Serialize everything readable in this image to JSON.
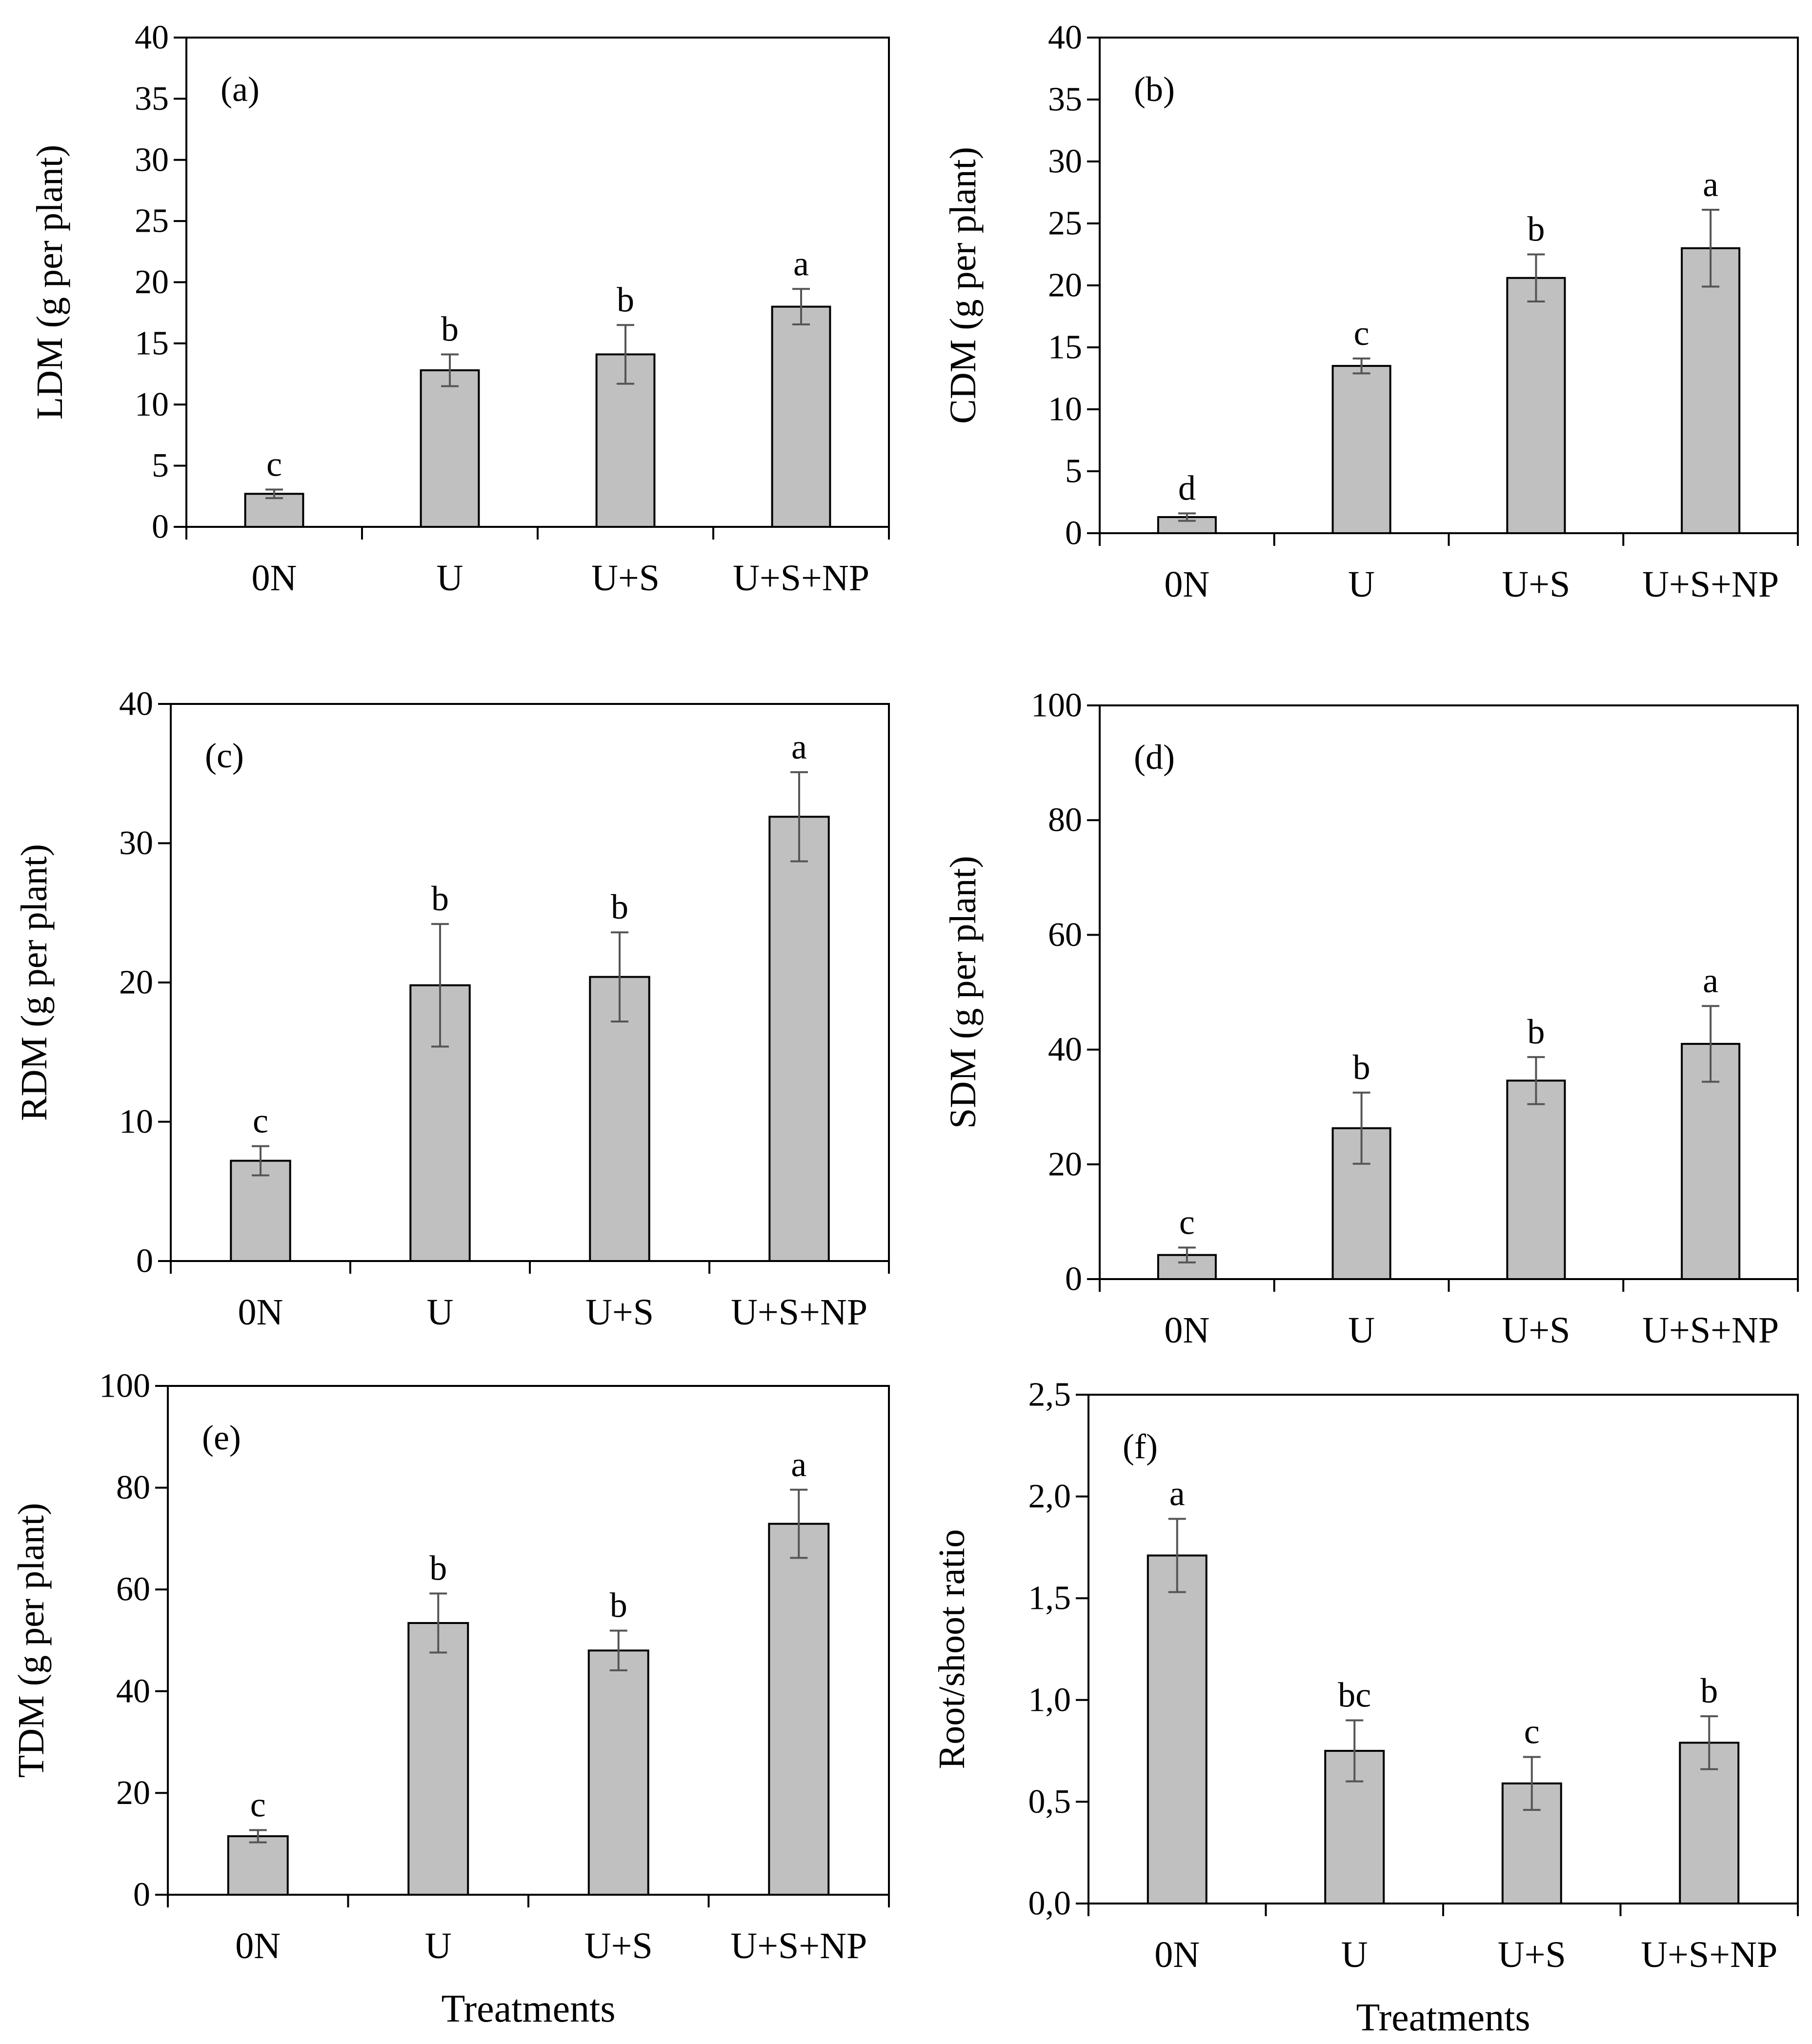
{
  "figure": {
    "colors": {
      "bar_fill": "#c0c0c0",
      "bar_stroke": "#000000",
      "error_bar": "#555555",
      "axis": "#000000"
    }
  },
  "chart_data": [
    {
      "type": "bar",
      "panel": "(a)",
      "ylabel": "LDM (g per plant)",
      "xlabel": "",
      "ylim": [
        0,
        40
      ],
      "yticks": [
        "0",
        "5",
        "10",
        "15",
        "20",
        "25",
        "30",
        "35",
        "40"
      ],
      "yticks_values": [
        0,
        5,
        10,
        15,
        20,
        25,
        30,
        35,
        40
      ],
      "categories": [
        "0N",
        "U",
        "U+S",
        "U+S+NP"
      ],
      "values": [
        2.7,
        12.8,
        14.1,
        18.0
      ],
      "errors": [
        0.35,
        1.3,
        2.4,
        1.45
      ],
      "significance": [
        "c",
        "b",
        "b",
        "a"
      ]
    },
    {
      "type": "bar",
      "panel": "(b)",
      "ylabel": "CDM (g per plant)",
      "xlabel": "",
      "ylim": [
        0,
        40
      ],
      "yticks": [
        "0",
        "5",
        "10",
        "15",
        "20",
        "25",
        "30",
        "35",
        "40"
      ],
      "yticks_values": [
        0,
        5,
        10,
        15,
        20,
        25,
        30,
        35,
        40
      ],
      "categories": [
        "0N",
        "U",
        "U+S",
        "U+S+NP"
      ],
      "values": [
        1.3,
        13.5,
        20.6,
        23.0
      ],
      "errors": [
        0.3,
        0.6,
        1.9,
        3.1
      ],
      "significance": [
        "d",
        "c",
        "b",
        "a"
      ]
    },
    {
      "type": "bar",
      "panel": "(c)",
      "ylabel": "RDM (g per plant)",
      "xlabel": "",
      "ylim": [
        0,
        40
      ],
      "yticks": [
        "0",
        "10",
        "20",
        "30",
        "40"
      ],
      "yticks_values": [
        0,
        10,
        20,
        30,
        40
      ],
      "categories": [
        "0N",
        "U",
        "U+S",
        "U+S+NP"
      ],
      "values": [
        7.2,
        19.8,
        20.4,
        31.9
      ],
      "errors": [
        1.05,
        4.4,
        3.2,
        3.2
      ],
      "significance": [
        "c",
        "b",
        "b",
        "a"
      ]
    },
    {
      "type": "bar",
      "panel": "(d)",
      "ylabel": "SDM (g per plant)",
      "xlabel": "",
      "ylim": [
        0,
        100
      ],
      "yticks": [
        "0",
        "20",
        "40",
        "60",
        "80",
        "100"
      ],
      "yticks_values": [
        0,
        20,
        40,
        60,
        80,
        100
      ],
      "categories": [
        "0N",
        "U",
        "U+S",
        "U+S+NP"
      ],
      "values": [
        4.2,
        26.3,
        34.6,
        41.0
      ],
      "errors": [
        1.3,
        6.2,
        4.1,
        6.6
      ],
      "significance": [
        "c",
        "b",
        "b",
        "a"
      ]
    },
    {
      "type": "bar",
      "panel": "(e)",
      "ylabel": "TDM (g per plant)",
      "xlabel": "Treatments",
      "ylim": [
        0,
        100
      ],
      "yticks": [
        "0",
        "20",
        "40",
        "60",
        "80",
        "100"
      ],
      "yticks_values": [
        0,
        20,
        40,
        60,
        80,
        100
      ],
      "categories": [
        "0N",
        "U",
        "U+S",
        "U+S+NP"
      ],
      "values": [
        11.5,
        53.4,
        48.0,
        72.9
      ],
      "errors": [
        1.2,
        5.8,
        3.9,
        6.7
      ],
      "significance": [
        "c",
        "b",
        "b",
        "a"
      ]
    },
    {
      "type": "bar",
      "panel": "(f)",
      "ylabel": "Root/shoot ratio",
      "xlabel": "Treatments",
      "ylim": [
        0,
        2.5
      ],
      "yticks": [
        "0,0",
        "0,5",
        "1,0",
        "1,5",
        "2,0",
        "2,5"
      ],
      "yticks_values": [
        0,
        0.5,
        1.0,
        1.5,
        2.0,
        2.5
      ],
      "categories": [
        "0N",
        "U",
        "U+S",
        "U+S+NP"
      ],
      "values": [
        1.71,
        0.75,
        0.59,
        0.79
      ],
      "errors": [
        0.18,
        0.15,
        0.13,
        0.13
      ],
      "significance": [
        "a",
        "bc",
        "c",
        "b"
      ]
    }
  ]
}
